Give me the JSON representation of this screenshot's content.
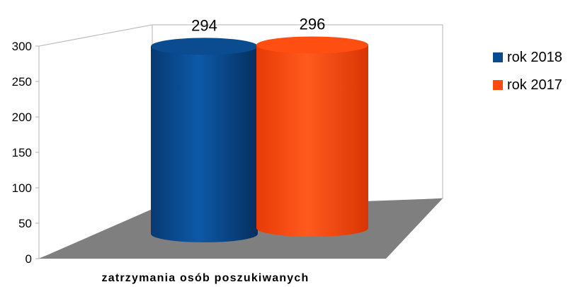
{
  "chart_data": {
    "type": "bar",
    "style": "3d-cylinder",
    "categories": [
      "zatrzymania osób poszukiwanych"
    ],
    "series": [
      {
        "name": "rok 2018",
        "values": [
          294
        ],
        "color": "#0a4a8e"
      },
      {
        "name": "rok 2017",
        "values": [
          296
        ],
        "color": "#ff4a0f"
      }
    ],
    "xlabel": "zatrzymania osób poszukiwanych",
    "ylim": [
      0,
      300
    ],
    "yticks": [
      0,
      50,
      100,
      150,
      200,
      250,
      300
    ],
    "data_labels": [
      "294",
      "296"
    ],
    "legend_position": "right",
    "grid": false,
    "floor_color": "#7f7f7f"
  }
}
